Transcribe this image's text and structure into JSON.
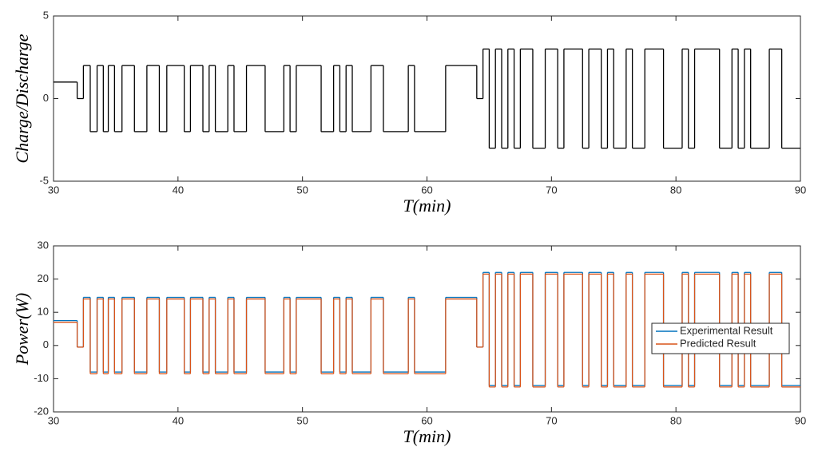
{
  "chart_data": [
    {
      "type": "step",
      "ylabel": "Charge/Discharge",
      "xlabel": "T(min)",
      "xlim": [
        30,
        90
      ],
      "xticks": [
        30,
        40,
        50,
        60,
        70,
        80,
        90
      ],
      "ylim": [
        -5,
        5
      ],
      "yticks": [
        -5,
        0,
        5
      ],
      "x": [
        30,
        31.9,
        32.4,
        32.95,
        33.5,
        34.0,
        34.4,
        34.9,
        35.5,
        36.5,
        37.5,
        38.5,
        39.1,
        40.5,
        41.0,
        42.0,
        42.5,
        43.0,
        44.0,
        44.5,
        45.5,
        47.0,
        48.5,
        49.0,
        49.5,
        51.5,
        52.5,
        53.0,
        53.5,
        54.0,
        55.5,
        56.5,
        58.5,
        59.0,
        61.5,
        64.0,
        64.5,
        65.0,
        65.5,
        66.0,
        66.5,
        67.0,
        67.5,
        68.5,
        69.5,
        70.5,
        71.0,
        72.5,
        73.0,
        74.0,
        74.5,
        75.0,
        76.0,
        76.5,
        77.5,
        79.0,
        80.5,
        81.0,
        81.5,
        83.5,
        84.5,
        85.0,
        85.5,
        86.0,
        87.5,
        88.5
      ],
      "series": [
        {
          "color": "#000000",
          "values": [
            1,
            0,
            2,
            -2,
            2,
            -2,
            2,
            -2,
            2,
            -2,
            2,
            -2,
            2,
            -2,
            2,
            -2,
            2,
            -2,
            2,
            -2,
            2,
            -2,
            2,
            -2,
            2,
            -2,
            2,
            -2,
            2,
            -2,
            2,
            -2,
            2,
            -2,
            2,
            0,
            3,
            -3,
            3,
            -3,
            3,
            -3,
            3,
            -3,
            3,
            -3,
            3,
            -3,
            3,
            -3,
            3,
            -3,
            3,
            -3,
            3,
            -3,
            3,
            -3,
            3,
            -3,
            3,
            -3,
            3,
            -3,
            3,
            -3
          ]
        }
      ]
    },
    {
      "type": "step",
      "ylabel": "Power(W)",
      "xlabel": "T(min)",
      "xlim": [
        30,
        90
      ],
      "xticks": [
        30,
        40,
        50,
        60,
        70,
        80,
        90
      ],
      "ylim": [
        -20,
        30
      ],
      "yticks": [
        -20,
        -10,
        0,
        10,
        20,
        30
      ],
      "legend": "right",
      "x": [
        30,
        31.9,
        32.4,
        32.95,
        33.5,
        34.0,
        34.4,
        34.9,
        35.5,
        36.5,
        37.5,
        38.5,
        39.1,
        40.5,
        41.0,
        42.0,
        42.5,
        43.0,
        44.0,
        44.5,
        45.5,
        47.0,
        48.5,
        49.0,
        49.5,
        51.5,
        52.5,
        53.0,
        53.5,
        54.0,
        55.5,
        56.5,
        58.5,
        59.0,
        61.5,
        64.0,
        64.5,
        65.0,
        65.5,
        66.0,
        66.5,
        67.0,
        67.5,
        68.5,
        69.5,
        70.5,
        71.0,
        72.5,
        73.0,
        74.0,
        74.5,
        75.0,
        76.0,
        76.5,
        77.5,
        79.0,
        80.5,
        81.0,
        81.5,
        83.5,
        84.5,
        85.0,
        85.5,
        86.0,
        87.5,
        88.5
      ],
      "series": [
        {
          "name": "Experimental Result",
          "color": "#0072bd",
          "values": [
            7.5,
            -0.5,
            14.5,
            -8,
            14.5,
            -8,
            14.5,
            -8,
            14.5,
            -8,
            14.5,
            -8,
            14.5,
            -8,
            14.5,
            -8,
            14.5,
            -8,
            14.5,
            -8,
            14.5,
            -8,
            14.5,
            -8,
            14.5,
            -8,
            14.5,
            -8,
            14.5,
            -8,
            14.5,
            -8,
            14.5,
            -8,
            14.5,
            -0.5,
            22,
            -12,
            22,
            -12,
            22,
            -12,
            22,
            -12,
            22,
            -12,
            22,
            -12,
            22,
            -12,
            22,
            -12,
            22,
            -12,
            22,
            -12,
            22,
            -12,
            22,
            -12,
            22,
            -12,
            22,
            -12,
            22,
            -12
          ]
        },
        {
          "name": "Predicted Result",
          "color": "#d95319",
          "values": [
            7,
            -0.5,
            14,
            -8.5,
            14,
            -8.5,
            14,
            -8.5,
            14,
            -8.5,
            14,
            -8.5,
            14,
            -8.5,
            14,
            -8.5,
            14,
            -8.5,
            14,
            -8.5,
            14,
            -8.5,
            14,
            -8.5,
            14,
            -8.5,
            14,
            -8.5,
            14,
            -8.5,
            14,
            -8.5,
            14,
            -8.5,
            14,
            -0.5,
            21.5,
            -12.5,
            21.5,
            -12.5,
            21.5,
            -12.5,
            21.5,
            -12.5,
            21.5,
            -12.5,
            21.5,
            -12.5,
            21.5,
            -12.5,
            21.5,
            -12.5,
            21.5,
            -12.5,
            21.5,
            -12.5,
            21.5,
            -12.5,
            21.5,
            -12.5,
            21.5,
            -12.5,
            21.5,
            -12.5,
            21.5,
            -12.5
          ]
        }
      ]
    }
  ]
}
